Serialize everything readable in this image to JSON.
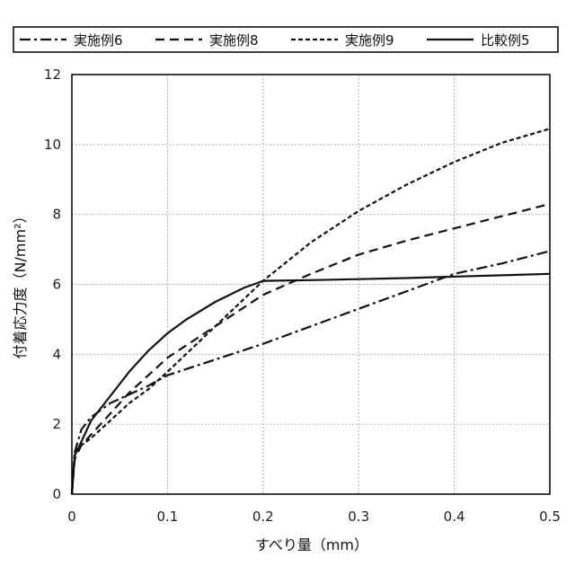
{
  "chart_data": {
    "type": "line",
    "title": "",
    "xlabel": "すべり量（mm）",
    "ylabel": "付着応力度（N/mm²）",
    "xlim": [
      0,
      0.5
    ],
    "ylim": [
      0,
      12
    ],
    "x_ticks": [
      "0",
      "0.1",
      "0.2",
      "0.3",
      "0.4",
      "0.5"
    ],
    "y_ticks": [
      "0",
      "2",
      "4",
      "6",
      "8",
      "10",
      "12"
    ],
    "grid": true,
    "legend_position": "top",
    "series": [
      {
        "name": "実施例6",
        "dash": "dash-dot",
        "x": [
          0,
          0.003,
          0.01,
          0.02,
          0.04,
          0.06,
          0.08,
          0.1,
          0.15,
          0.2,
          0.25,
          0.3,
          0.35,
          0.4,
          0.45,
          0.5
        ],
        "y": [
          0,
          1.2,
          1.85,
          2.2,
          2.6,
          2.85,
          3.1,
          3.4,
          3.85,
          4.3,
          4.8,
          5.3,
          5.8,
          6.3,
          6.6,
          6.95
        ]
      },
      {
        "name": "実施例8",
        "dash": "long-dash",
        "x": [
          0,
          0.003,
          0.01,
          0.02,
          0.04,
          0.06,
          0.08,
          0.1,
          0.15,
          0.2,
          0.25,
          0.3,
          0.35,
          0.4,
          0.45,
          0.5
        ],
        "y": [
          0,
          1.0,
          1.4,
          1.7,
          2.3,
          2.9,
          3.4,
          3.9,
          4.8,
          5.7,
          6.3,
          6.85,
          7.25,
          7.6,
          7.95,
          8.3
        ]
      },
      {
        "name": "実施例9",
        "dash": "short-dash",
        "x": [
          0,
          0.003,
          0.01,
          0.02,
          0.04,
          0.06,
          0.08,
          0.1,
          0.15,
          0.2,
          0.25,
          0.3,
          0.35,
          0.4,
          0.45,
          0.5
        ],
        "y": [
          0,
          1.2,
          1.4,
          1.6,
          2.1,
          2.6,
          3.0,
          3.5,
          4.8,
          6.1,
          7.2,
          8.1,
          8.85,
          9.5,
          10.05,
          10.45
        ]
      },
      {
        "name": "比較例5",
        "dash": "solid",
        "x": [
          0,
          0.003,
          0.01,
          0.02,
          0.04,
          0.06,
          0.08,
          0.1,
          0.12,
          0.15,
          0.18,
          0.2,
          0.25,
          0.3,
          0.35,
          0.4,
          0.45,
          0.5
        ],
        "y": [
          0,
          1.1,
          1.5,
          2.1,
          2.8,
          3.5,
          4.1,
          4.6,
          5.0,
          5.5,
          5.9,
          6.1,
          6.12,
          6.15,
          6.18,
          6.22,
          6.26,
          6.3
        ]
      }
    ]
  }
}
